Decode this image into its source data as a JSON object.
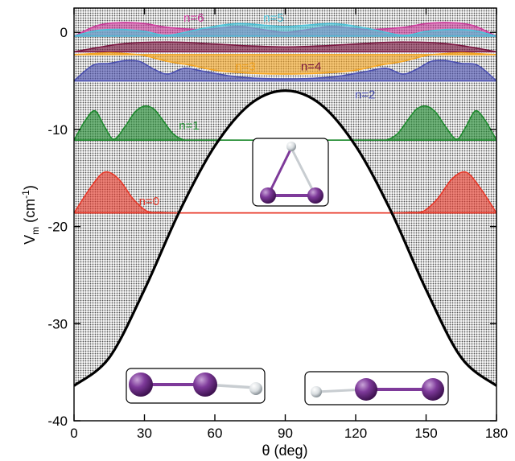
{
  "chart_data": {
    "type": "line",
    "xlabel": "θ (deg)",
    "ylabel_main": "V",
    "ylabel_sub": "m",
    "ylabel_unit_pre": " (cm",
    "ylabel_unit_sup": "-1",
    "ylabel_unit_post": ")",
    "xlim": [
      0,
      180
    ],
    "ylim": [
      -40,
      2.5
    ],
    "xticks": [
      "0",
      "30",
      "60",
      "90",
      "120",
      "150",
      "180"
    ],
    "xtick_values": [
      0,
      30,
      60,
      90,
      120,
      150,
      180
    ],
    "yticks": [
      "0",
      "-10",
      "-20",
      "-30",
      "-40"
    ],
    "ytick_values": [
      0,
      -10,
      -20,
      -30,
      -40
    ],
    "potential": {
      "x": [
        0,
        15,
        30,
        45,
        60,
        75,
        90,
        105,
        120,
        135,
        150,
        165,
        180
      ],
      "y": [
        -36.4,
        -33.5,
        -26.5,
        -18.4,
        -11.7,
        -7.4,
        -6.0,
        -7.4,
        -11.7,
        -18.4,
        -26.5,
        -33.5,
        -36.4
      ]
    },
    "series": [
      {
        "name": "n=0",
        "energy": -18.6,
        "color": "#e8392a",
        "x": [
          0,
          7,
          13,
          19,
          25,
          31,
          37,
          43,
          50,
          90,
          130,
          137,
          143,
          149,
          155,
          161,
          167,
          173,
          180
        ],
        "y": [
          -18.6,
          -16.0,
          -14.4,
          -15.1,
          -17.1,
          -18.4,
          -18.55,
          -18.6,
          -18.6,
          -18.6,
          -18.6,
          -18.6,
          -18.55,
          -18.4,
          -17.1,
          -15.1,
          -14.4,
          -16.0,
          -18.6
        ]
      },
      {
        "name": "n=1",
        "energy": -11.1,
        "color": "#1e8a2e",
        "x": [
          0,
          5,
          9,
          13,
          17,
          22,
          26,
          30,
          34,
          38,
          42,
          46,
          52,
          90,
          128,
          134,
          138,
          142,
          146,
          150,
          154,
          158,
          163,
          167,
          171,
          175,
          180
        ],
        "y": [
          -11.1,
          -9.0,
          -8.1,
          -9.7,
          -11.0,
          -9.6,
          -8.2,
          -7.6,
          -7.9,
          -9.1,
          -10.4,
          -11.0,
          -11.1,
          -11.1,
          -11.1,
          -11.0,
          -10.4,
          -9.1,
          -7.9,
          -7.6,
          -8.2,
          -9.6,
          -11.0,
          -9.7,
          -8.1,
          -9.0,
          -11.1
        ]
      },
      {
        "name": "n=2",
        "energy": -5.0,
        "color": "#4a4fb0",
        "x": [
          0,
          8,
          15,
          22,
          28,
          34,
          40,
          47,
          55,
          70,
          90,
          110,
          125,
          133,
          140,
          146,
          152,
          158,
          165,
          172,
          180
        ],
        "y": [
          -5.0,
          -3.4,
          -3.2,
          -2.9,
          -3.0,
          -3.8,
          -4.3,
          -3.7,
          -4.0,
          -4.6,
          -4.8,
          -4.6,
          -4.0,
          -3.7,
          -4.3,
          -3.8,
          -3.0,
          -2.9,
          -3.2,
          -3.4,
          -5.0
        ]
      },
      {
        "name": "n=3",
        "energy": -2.3,
        "color": "#f5a623",
        "x": [
          0,
          8,
          15,
          22,
          30,
          40,
          50,
          60,
          75,
          90,
          105,
          120,
          130,
          140,
          150,
          158,
          165,
          172,
          180
        ],
        "y": [
          -2.3,
          -2.2,
          -2.1,
          -2.2,
          -2.4,
          -3.0,
          -3.4,
          -3.9,
          -4.2,
          -4.3,
          -4.2,
          -3.9,
          -3.4,
          -3.0,
          -2.4,
          -2.2,
          -2.1,
          -2.2,
          -2.3
        ]
      },
      {
        "name": "n=4",
        "energy": -2.0,
        "color": "#7a1640",
        "x": [
          0,
          20,
          40,
          60,
          75,
          90,
          105,
          120,
          140,
          160,
          180
        ],
        "y": [
          -2.0,
          -1.2,
          -1.0,
          -1.2,
          -1.4,
          -1.5,
          -1.4,
          -1.2,
          -1.0,
          -1.2,
          -2.0
        ]
      },
      {
        "name": "n=5",
        "energy": -0.4,
        "color": "#4cc3d9",
        "x": [
          0,
          10,
          20,
          30,
          40,
          55,
          70,
          90,
          110,
          125,
          140,
          150,
          160,
          170,
          180
        ],
        "y": [
          -0.4,
          0.2,
          0.3,
          0.1,
          -0.3,
          0.4,
          0.9,
          0.6,
          0.9,
          0.4,
          -0.3,
          0.1,
          0.3,
          0.2,
          -0.4
        ]
      },
      {
        "name": "n=6",
        "energy": -0.4,
        "color": "#cc3b9b",
        "x": [
          0,
          10,
          20,
          30,
          40,
          55,
          70,
          80,
          90,
          100,
          110,
          125,
          140,
          150,
          160,
          170,
          180
        ],
        "y": [
          -0.4,
          0.7,
          1.0,
          0.9,
          0.5,
          0.3,
          0.6,
          0.3,
          0.0,
          0.3,
          0.6,
          0.3,
          0.5,
          0.9,
          1.0,
          0.7,
          -0.4
        ]
      }
    ],
    "labels": [
      {
        "text": "n=6",
        "x": 51,
        "y": 1.1,
        "color": "#cc3b9b"
      },
      {
        "text": "n=5",
        "x": 85,
        "y": 1.1,
        "color": "#4cc3d9"
      },
      {
        "text": "n=3",
        "x": 73,
        "y": -3.9,
        "color": "#f5a623"
      },
      {
        "text": "n=4",
        "x": 101,
        "y": -3.9,
        "color": "#7a1640"
      },
      {
        "text": "n=2",
        "x": 124,
        "y": -6.8,
        "color": "#4a4fb0"
      },
      {
        "text": "n=1",
        "x": 49,
        "y": -10.0,
        "color": "#1e8a2e"
      },
      {
        "text": "n=0",
        "x": 32,
        "y": -17.8,
        "color": "#e8392a"
      }
    ],
    "insets": [
      {
        "id": "triangle",
        "x0": 85,
        "x1": 112,
        "y0": -9.3,
        "y1": -20.3
      },
      {
        "id": "linear-left",
        "x0": 23,
        "x1": 86,
        "y0": -32.0,
        "y1": -36.2
      },
      {
        "id": "linear-right",
        "x0": 104,
        "x1": 166,
        "y0": -32.6,
        "y1": -36.4
      }
    ]
  },
  "colors": {
    "potential": "#000000",
    "shade_dot": "#555555",
    "atom_purple": "#7e3a9a",
    "atom_h": "#d8dde0",
    "bond_purple": "#7e3a9a"
  }
}
